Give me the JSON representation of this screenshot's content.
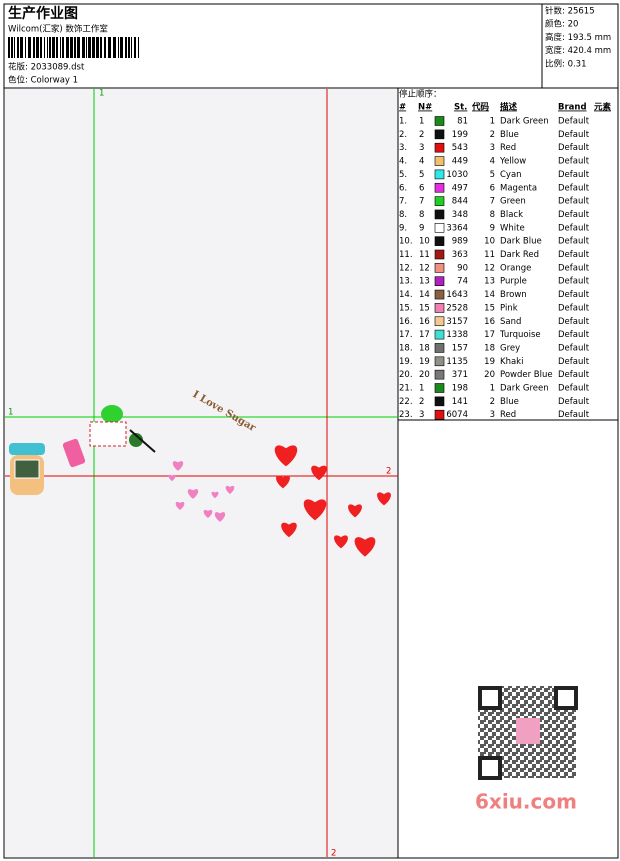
{
  "header": {
    "title": "生产作业图",
    "studio": "Wilcom(汇家) 数饰工作室",
    "design": "花版: 2033089.dst",
    "colorway": "色位: Colorway 1"
  },
  "info": [
    "针数: 25615",
    "颜色: 20",
    "高度: 193.5 mm",
    "宽度: 420.4 mm",
    "比例: 0.31"
  ],
  "canvas": {
    "guide_labels": [
      "1",
      "1",
      "2",
      "2"
    ],
    "lettering": "I Love Sugar"
  },
  "stop_sequence": {
    "title": "停止顺序：",
    "headers": [
      "#",
      "N#",
      "St.",
      "代码",
      "描述",
      "Brand",
      "元素"
    ],
    "rows": [
      [
        "1.",
        "1",
        "#1a8a1a",
        "81",
        "1",
        "Dark Green",
        "Default"
      ],
      [
        "2.",
        "2",
        "#101010",
        "199",
        "2",
        "Blue",
        "Default"
      ],
      [
        "3.",
        "3",
        "#e01010",
        "543",
        "3",
        "Red",
        "Default"
      ],
      [
        "4.",
        "4",
        "#f0c070",
        "449",
        "4",
        "Yellow",
        "Default"
      ],
      [
        "5.",
        "5",
        "#30e8e8",
        "1030",
        "5",
        "Cyan",
        "Default"
      ],
      [
        "6.",
        "6",
        "#e030e0",
        "497",
        "6",
        "Magenta",
        "Default"
      ],
      [
        "7.",
        "7",
        "#20d020",
        "844",
        "7",
        "Green",
        "Default"
      ],
      [
        "8.",
        "8",
        "#101010",
        "348",
        "8",
        "Black",
        "Default"
      ],
      [
        "9.",
        "9",
        "#ffffff",
        "3364",
        "9",
        "White",
        "Default"
      ],
      [
        "10.",
        "10",
        "#101010",
        "989",
        "10",
        "Dark Blue",
        "Default"
      ],
      [
        "11.",
        "11",
        "#a01818",
        "363",
        "11",
        "Dark Red",
        "Default"
      ],
      [
        "12.",
        "12",
        "#f09080",
        "90",
        "12",
        "Orange",
        "Default"
      ],
      [
        "13.",
        "13",
        "#b020c0",
        "74",
        "13",
        "Purple",
        "Default"
      ],
      [
        "14.",
        "14",
        "#8a6040",
        "1643",
        "14",
        "Brown",
        "Default"
      ],
      [
        "15.",
        "15",
        "#f080b0",
        "2528",
        "15",
        "Pink",
        "Default"
      ],
      [
        "16.",
        "16",
        "#f0c890",
        "3157",
        "16",
        "Sand",
        "Default"
      ],
      [
        "17.",
        "17",
        "#40e0d0",
        "1338",
        "17",
        "Turquoise",
        "Default"
      ],
      [
        "18.",
        "18",
        "#707070",
        "157",
        "18",
        "Grey",
        "Default"
      ],
      [
        "19.",
        "19",
        "#909088",
        "1135",
        "19",
        "Khaki",
        "Default"
      ],
      [
        "20.",
        "20",
        "#787878",
        "371",
        "20",
        "Powder Blue",
        "Default"
      ],
      [
        "21.",
        "1",
        "#1a8a1a",
        "198",
        "1",
        "Dark Green",
        "Default"
      ],
      [
        "22.",
        "2",
        "#101010",
        "141",
        "2",
        "Blue",
        "Default"
      ],
      [
        "23.",
        "3",
        "#e01010",
        "6074",
        "3",
        "Red",
        "Default"
      ]
    ]
  },
  "watermark": "6xiu.com"
}
